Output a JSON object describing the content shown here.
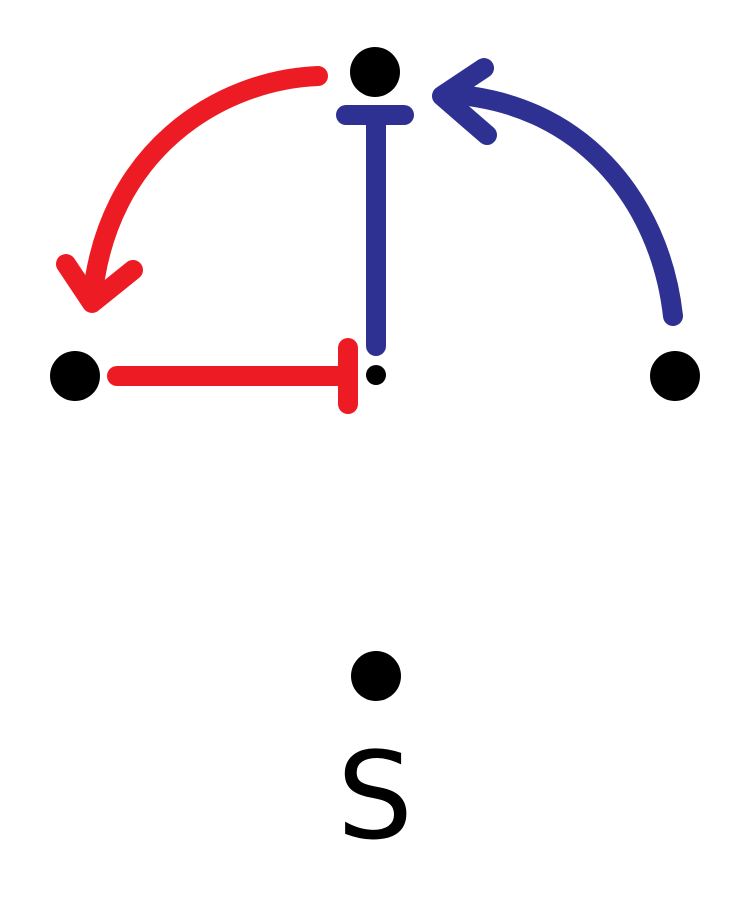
{
  "colors": {
    "node": "#000000",
    "red_edge": "#ED1C24",
    "blue_edge": "#2E3192",
    "label": "#000000"
  },
  "nodes": [
    {
      "id": "top"
    },
    {
      "id": "left"
    },
    {
      "id": "center-small"
    },
    {
      "id": "right"
    },
    {
      "id": "bottom"
    }
  ],
  "edges": [
    {
      "id": "red-activation-top-to-left",
      "from": "top",
      "to": "left",
      "type": "activation",
      "color": "red"
    },
    {
      "id": "red-inhibition-left-to-center",
      "from": "left",
      "to": "center-small",
      "type": "inhibition",
      "color": "red"
    },
    {
      "id": "blue-inhibition-center-to-top",
      "from": "center-small",
      "to": "top",
      "type": "inhibition",
      "color": "blue"
    },
    {
      "id": "blue-activation-right-to-top",
      "from": "right",
      "to": "top",
      "type": "activation",
      "color": "blue"
    }
  ],
  "label": {
    "text": "S"
  }
}
